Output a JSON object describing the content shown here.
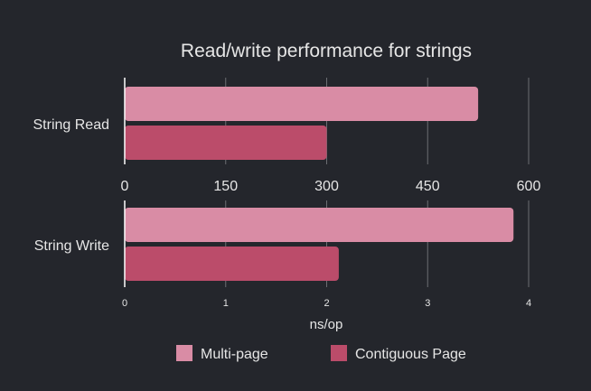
{
  "chart_data": {
    "type": "bar",
    "orientation": "horizontal",
    "title": "Read/write performance for strings",
    "xlabel": "ns/op",
    "legend_position": "bottom",
    "grid": true,
    "series_names": [
      "Multi-page",
      "Contiguous Page"
    ],
    "colors": [
      "#d98ca5",
      "#bb4c6a"
    ],
    "panels": [
      {
        "category": "String Read",
        "xlim": [
          0,
          600
        ],
        "ticks": [
          "0",
          "150",
          "300",
          "450",
          "600"
        ],
        "values": [
          525,
          300
        ]
      },
      {
        "category": "String Write",
        "xlim": [
          0,
          4
        ],
        "ticks": [
          "0",
          "1",
          "2",
          "3",
          "4"
        ],
        "values": [
          3.85,
          2.12
        ]
      }
    ]
  }
}
